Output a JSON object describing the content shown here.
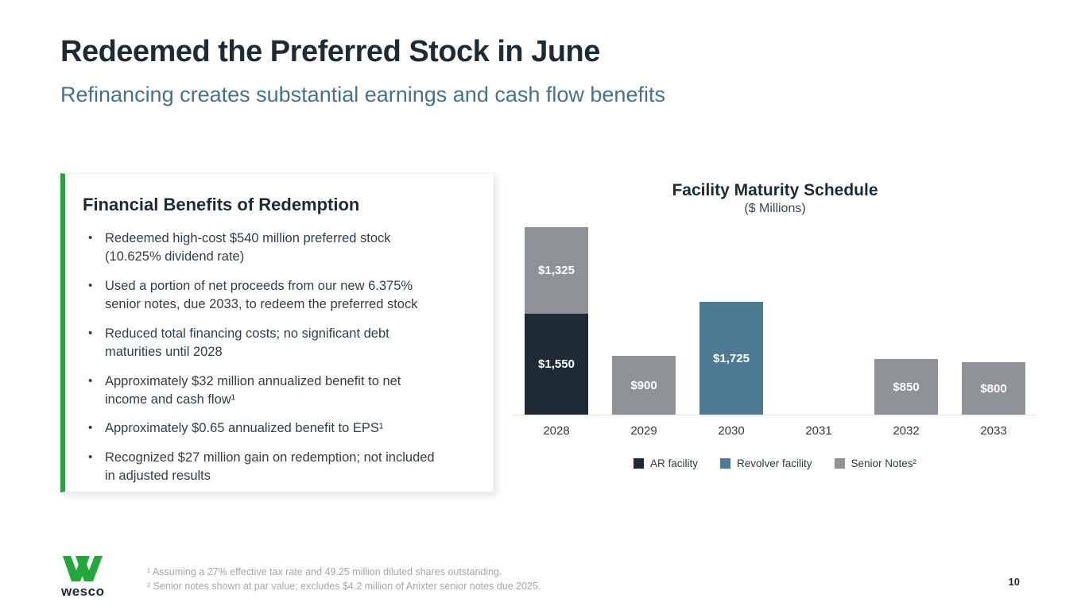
{
  "slide": {
    "title": "Redeemed the Preferred Stock in June",
    "subtitle": "Refinancing creates substantial earnings and cash flow benefits",
    "page_number": "10"
  },
  "benefits_box": {
    "heading": "Financial Benefits of Redemption",
    "accent_color": "#21a838",
    "bullets": [
      "Redeemed high-cost $540 million preferred stock (10.625% dividend rate)",
      "Used a portion of net proceeds from our new 6.375% senior notes, due 2033, to redeem the preferred stock",
      "Reduced total financing costs; no significant debt maturities until 2028",
      "Approximately $32 million annualized benefit to net income and cash flow¹",
      "Approximately $0.65 annualized benefit to EPS¹",
      "Recognized $27 million gain on redemption; not included in adjusted results"
    ]
  },
  "chart_data": {
    "type": "bar",
    "stacked": true,
    "title": "Facility Maturity Schedule",
    "subtitle": "($ Millions)",
    "categories": [
      "2028",
      "2029",
      "2030",
      "2031",
      "2032",
      "2033"
    ],
    "series": [
      {
        "name": "AR facility",
        "color": "#1e2a35",
        "values": [
          1550,
          0,
          0,
          0,
          0,
          0
        ]
      },
      {
        "name": "Revolver facility",
        "color": "#4e7b94",
        "values": [
          0,
          0,
          1725,
          0,
          0,
          0
        ]
      },
      {
        "name": "Senior Notes²",
        "color": "#8f9397",
        "values": [
          1325,
          900,
          0,
          0,
          850,
          800
        ]
      }
    ],
    "data_label_prefix": "$",
    "ylim": [
      0,
      2875
    ],
    "grid": false,
    "legend_position": "bottom"
  },
  "footer": {
    "logo_text": "wesco",
    "logo_color": "#21a838",
    "footnotes": [
      "¹ Assuming a 27% effective tax rate and 49.25 million diluted shares outstanding.",
      "² Senior notes shown at par value; excludes $4.2 million of Anixter senior notes due 2025."
    ]
  }
}
